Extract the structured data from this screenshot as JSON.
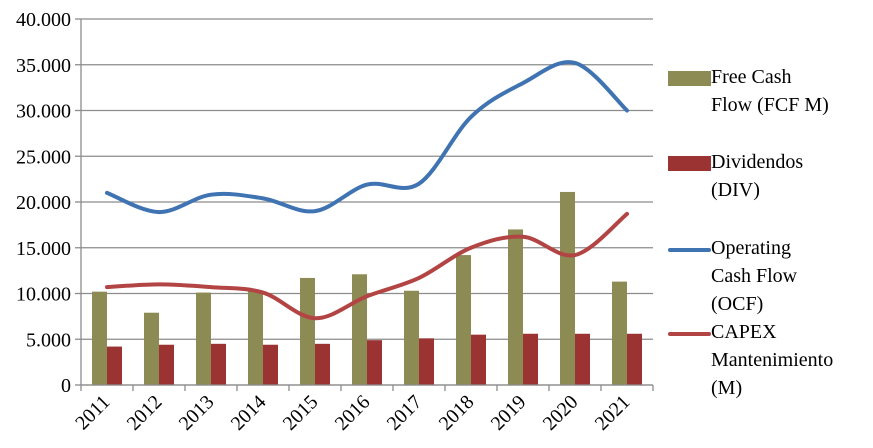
{
  "colors": {
    "fcf": "#8b8b53",
    "div": "#9b3333",
    "ocf": "#3f73b1",
    "capex": "#b34444",
    "grid": "#8c8c8c",
    "axis": "#8c8c8c"
  },
  "legend": {
    "fcf": [
      "Free Cash",
      "Flow (FCF M)"
    ],
    "div": [
      "Dividendos",
      "(DIV)"
    ],
    "ocf": [
      "Operating",
      "Cash Flow",
      "(OCF)"
    ],
    "capex": [
      "CAPEX",
      "Mantenimiento",
      "(M)"
    ]
  },
  "chart_data": {
    "type": "bar+line",
    "categories": [
      "2011",
      "2012",
      "2013",
      "2014",
      "2015",
      "2016",
      "2017",
      "2018",
      "2019",
      "2020",
      "2021"
    ],
    "ylim": [
      0,
      40000
    ],
    "yticks": [
      "0",
      "5.000",
      "10.000",
      "15.000",
      "20.000",
      "25.000",
      "30.000",
      "35.000",
      "40.000"
    ],
    "grid": true,
    "legend_position": "right",
    "series": [
      {
        "name": "Free Cash Flow (FCF M)",
        "kind": "bar",
        "color_key": "fcf",
        "values": [
          10200,
          7900,
          10100,
          10300,
          11700,
          12100,
          10300,
          14200,
          17000,
          21100,
          11300
        ]
      },
      {
        "name": "Dividendos (DIV)",
        "kind": "bar",
        "color_key": "div",
        "values": [
          4200,
          4400,
          4500,
          4400,
          4500,
          4900,
          5100,
          5500,
          5600,
          5600,
          5600
        ]
      },
      {
        "name": "Operating Cash Flow (OCF)",
        "kind": "line",
        "color_key": "ocf",
        "values": [
          21000,
          18900,
          20800,
          20400,
          19000,
          21900,
          22000,
          29300,
          33000,
          35200,
          30000
        ]
      },
      {
        "name": "CAPEX Mantenimiento (M)",
        "kind": "line",
        "color_key": "capex",
        "values": [
          10700,
          11000,
          10700,
          10100,
          7300,
          9700,
          11700,
          15000,
          16200,
          14200,
          18700
        ]
      }
    ]
  }
}
